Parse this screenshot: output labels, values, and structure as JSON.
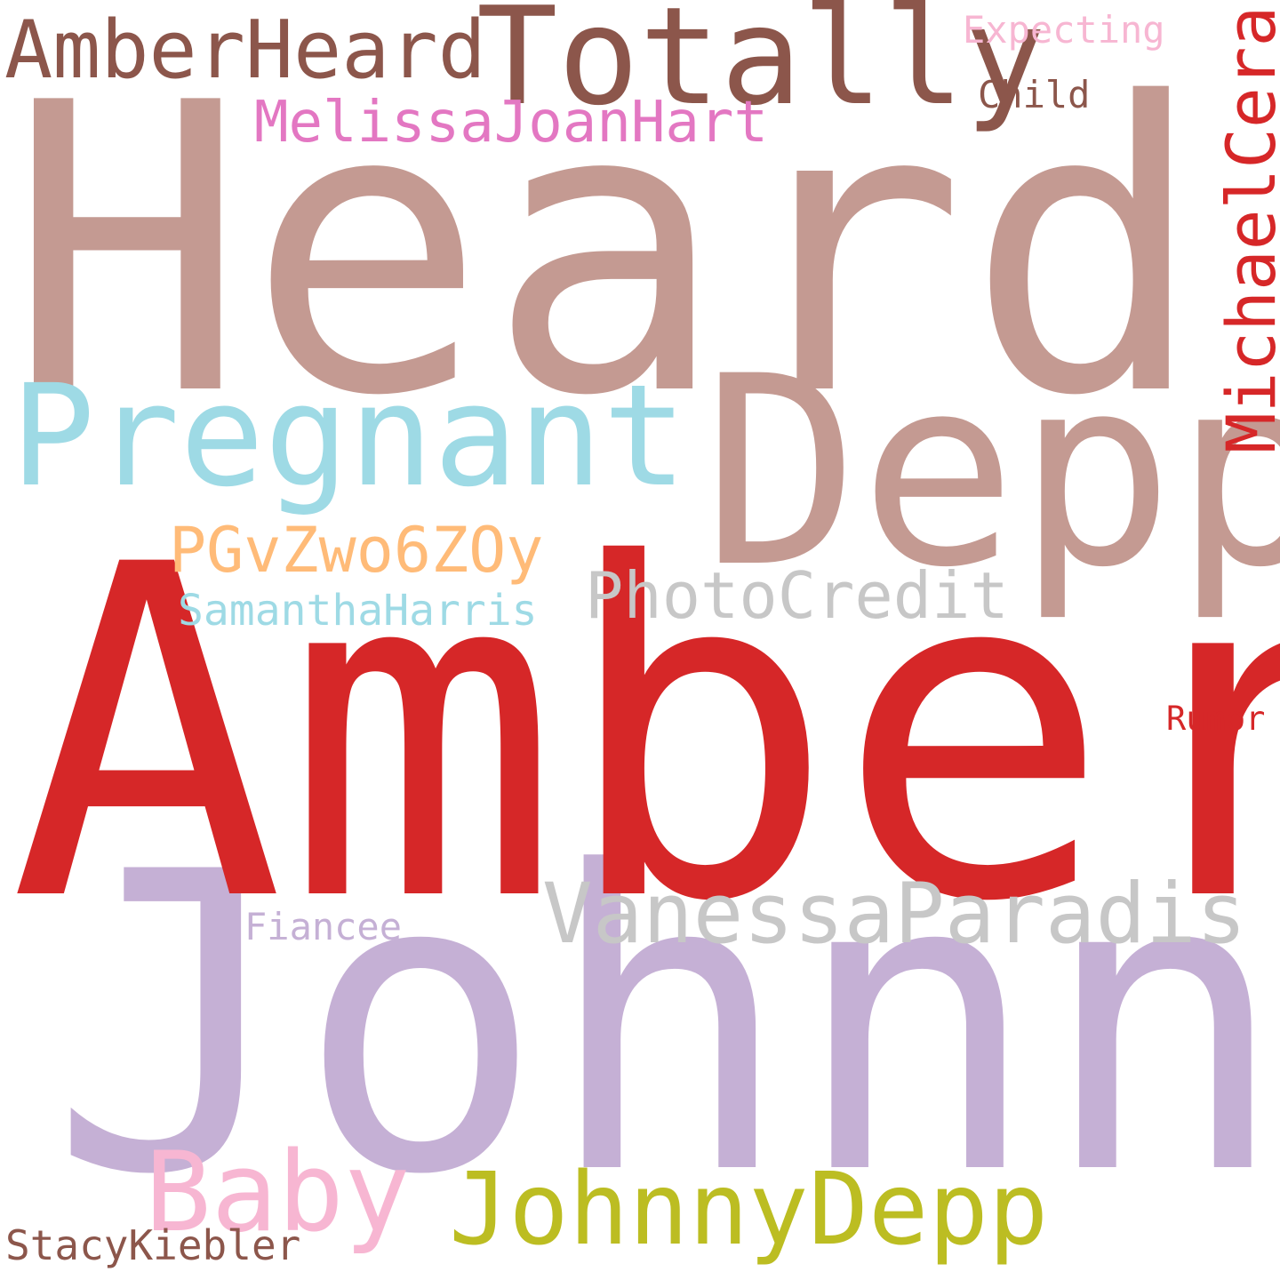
{
  "words": {
    "heard": {
      "text": "Heard",
      "color": "#c49a92"
    },
    "amber": {
      "text": "Amber",
      "color": "#d62728"
    },
    "johnny": {
      "text": "Johnny",
      "color": "#c5b0d5"
    },
    "depp": {
      "text": "Depp",
      "color": "#c49a92"
    },
    "pregnant": {
      "text": "Pregnant",
      "color": "#9edae5"
    },
    "totally": {
      "text": "Totally",
      "color": "#8c564b"
    },
    "amberheard": {
      "text": "AmberHeard",
      "color": "#8c564b"
    },
    "vanessa": {
      "text": "VanessaParadis",
      "color": "#c7c7c7"
    },
    "johnnydepp": {
      "text": "JohnnyDepp",
      "color": "#bcbd22"
    },
    "baby": {
      "text": "Baby",
      "color": "#f7b6d2"
    },
    "photocredit": {
      "text": "PhotoCredit",
      "color": "#c7c7c7"
    },
    "pgvz": {
      "text": "PGvZwo6ZOy",
      "color": "#ffbb78"
    },
    "melissa": {
      "text": "MelissaJoanHart",
      "color": "#e377c2"
    },
    "samantha": {
      "text": "SamanthaHarris",
      "color": "#9edae5"
    },
    "expecting": {
      "text": "Expecting",
      "color": "#f7b6d2"
    },
    "child": {
      "text": "Child",
      "color": "#8c564b"
    },
    "fiancee": {
      "text": "Fiancee",
      "color": "#c5b0d5"
    },
    "rumor": {
      "text": "Rumor",
      "color": "#d62728"
    },
    "stacy": {
      "text": "StacyKiebler",
      "color": "#8c564b"
    },
    "michaelcera": {
      "text": "MichaelCera",
      "color": "#d62728"
    }
  }
}
